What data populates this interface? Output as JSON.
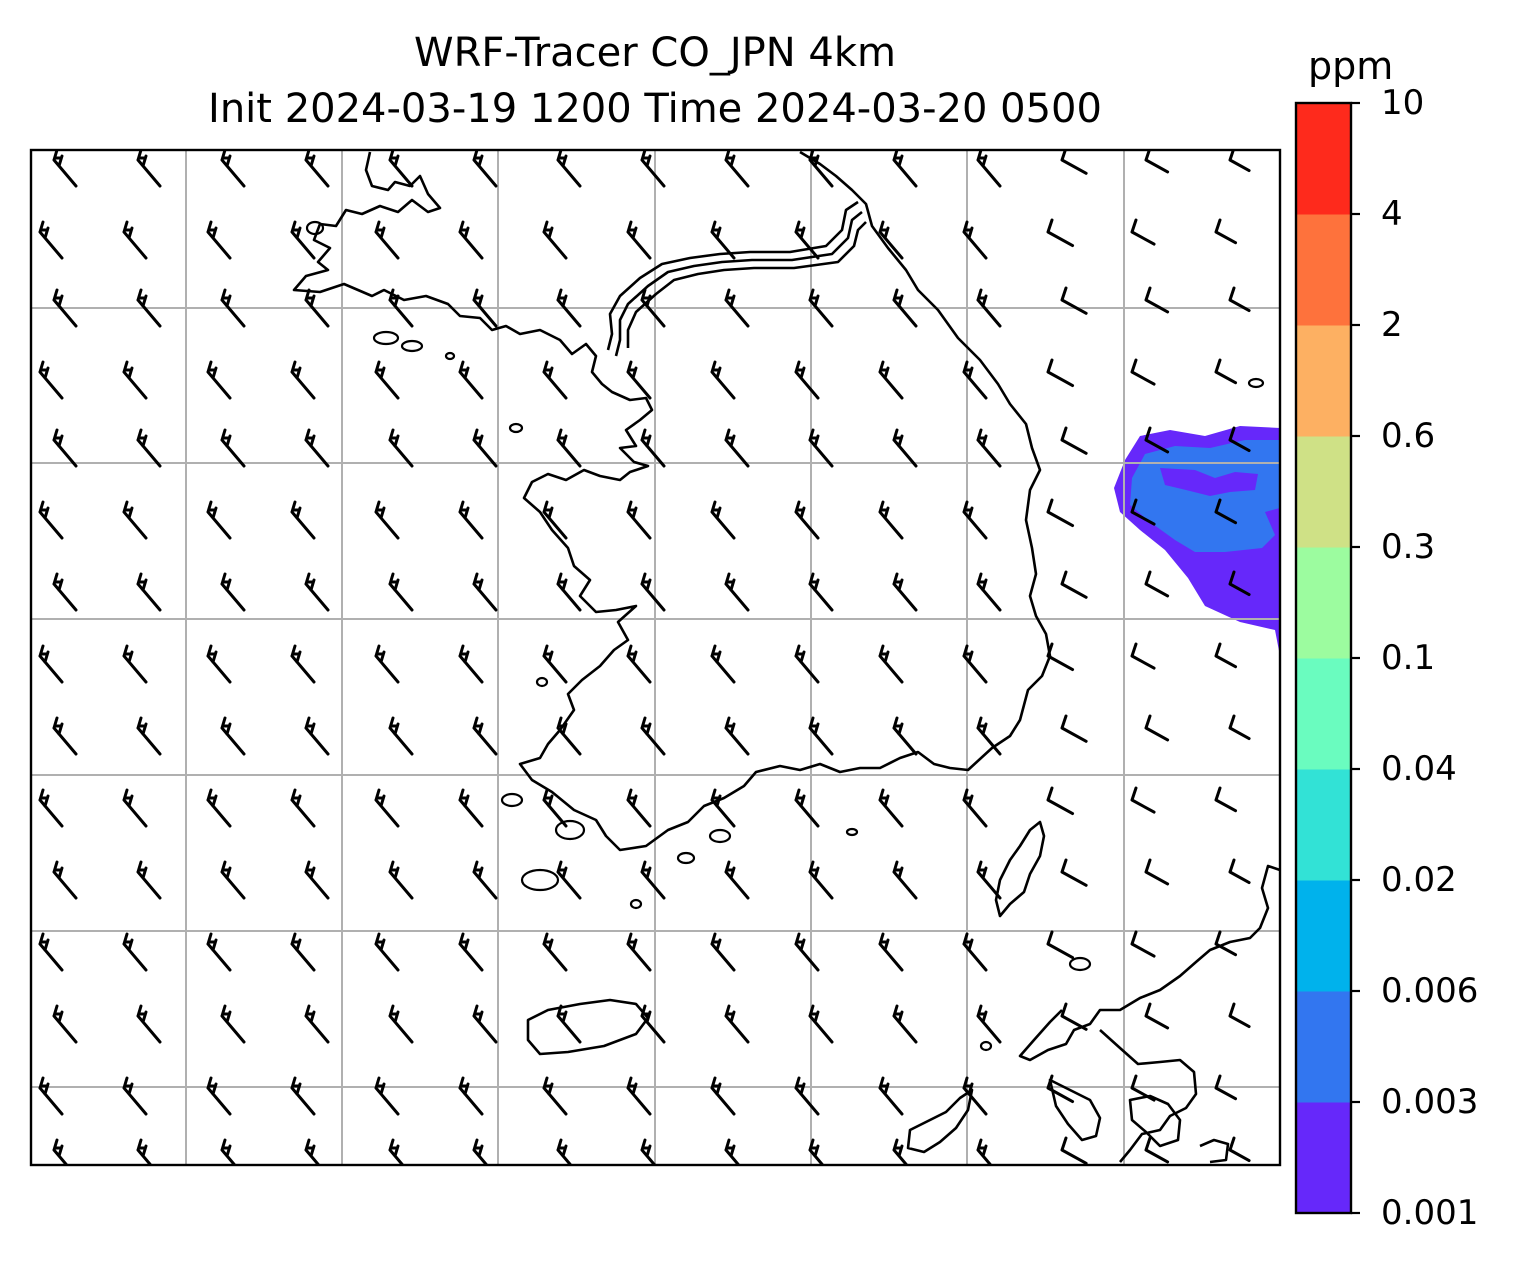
{
  "title": {
    "line1": "WRF-Tracer CO_JPN 4km",
    "line2": "Init 2024-03-19 1200 Time 2024-03-20 0500"
  },
  "colorbar": {
    "unit": "ppm",
    "levels": [
      "0.001",
      "0.003",
      "0.006",
      "0.02",
      "0.04",
      "0.1",
      "0.3",
      "0.6",
      "2",
      "4",
      "10"
    ],
    "colors": [
      "#6628fa",
      "#3276f0",
      "#00b2ec",
      "#32e2d6",
      "#6afcbf",
      "#9cfc9f",
      "#cfe186",
      "#fdb062",
      "#fe723c",
      "#fe2a1c"
    ]
  },
  "map": {
    "gridlines": true,
    "wind_barbs": true,
    "tracer_plume_levels": [
      "0.001",
      "0.003"
    ]
  }
}
